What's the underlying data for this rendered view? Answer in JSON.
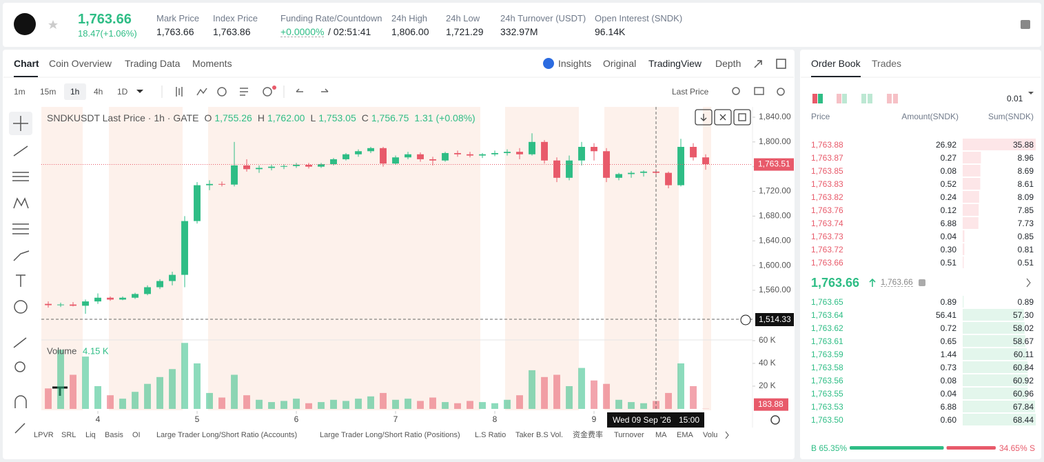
{
  "header": {
    "price": "1,763.66",
    "change": "18.47(+1.06%)",
    "stats": [
      {
        "label": "Mark Price",
        "value": "1,763.66"
      },
      {
        "label": "Index Price",
        "value": "1,763.86"
      },
      {
        "label": "Funding Rate/Countdown",
        "value": "+0.0000%",
        "extra": "/ 02:51:41"
      },
      {
        "label": "24h High",
        "value": "1,806.00"
      },
      {
        "label": "24h Low",
        "value": "1,721.29"
      },
      {
        "label": "24h Turnover (USDT)",
        "value": "332.97M"
      },
      {
        "label": "Open Interest (SNDK)",
        "value": "96.14K"
      }
    ]
  },
  "chart_tabs": [
    "Chart",
    "Coin Overview",
    "Trading Data",
    "Moments"
  ],
  "view_tabs": [
    "Insights",
    "Original",
    "TradingView",
    "Depth"
  ],
  "intervals": [
    "1m",
    "15m",
    "1h",
    "4h",
    "1D"
  ],
  "price_type": "Last Price",
  "legend": {
    "symbol": "SNDKUSDT Last Price · 1h · GATE",
    "items": [
      {
        "key": "O",
        "value": "1,755.26"
      },
      {
        "key": "H",
        "value": "1,762.00"
      },
      {
        "key": "L",
        "value": "1,753.05"
      },
      {
        "key": "C",
        "value": "1,756.75"
      }
    ],
    "change": "1.31 (+0.08%)"
  },
  "chart_data": {
    "type": "candlestick",
    "up_color": "#2ebd85",
    "down_color": "#e85a6a",
    "x": [
      -12,
      -9,
      -6,
      -3,
      0,
      3,
      6,
      9,
      12,
      15,
      18,
      21,
      24,
      27,
      30,
      33,
      36,
      39,
      42,
      45,
      48,
      51,
      54,
      57,
      60,
      63,
      66,
      69,
      72,
      75,
      78,
      81,
      84,
      87,
      90,
      93,
      96,
      99,
      102,
      105,
      108,
      111,
      114,
      117,
      120,
      123,
      126,
      129,
      132,
      135,
      138,
      141,
      144,
      147
    ],
    "open": [
      1538,
      1536,
      1537,
      1535,
      1542,
      1548,
      1545,
      1548,
      1554,
      1565,
      1575,
      1585,
      1672,
      1730,
      1732,
      1731,
      1762,
      1756,
      1758,
      1760,
      1761,
      1763,
      1760,
      1764,
      1772,
      1780,
      1785,
      1790,
      1765,
      1775,
      1780,
      1772,
      1770,
      1782,
      1780,
      1778,
      1780,
      1782,
      1784,
      1780,
      1800,
      1770,
      1742,
      1770,
      1792,
      1785,
      1742,
      1748,
      1750,
      1752,
      1750,
      1730,
      1792,
      1775
    ],
    "high": [
      1542,
      1540,
      1541,
      1545,
      1555,
      1550,
      1550,
      1556,
      1568,
      1578,
      1590,
      1680,
      1735,
      1738,
      1736,
      1800,
      1772,
      1762,
      1763,
      1764,
      1766,
      1766,
      1766,
      1774,
      1782,
      1788,
      1792,
      1792,
      1778,
      1784,
      1783,
      1776,
      1784,
      1786,
      1784,
      1782,
      1786,
      1788,
      1790,
      1814,
      1803,
      1775,
      1778,
      1800,
      1798,
      1790,
      1750,
      1753,
      1754,
      1756,
      1752,
      1805,
      1798,
      1780
    ],
    "low": [
      1532,
      1533,
      1534,
      1522,
      1538,
      1543,
      1544,
      1546,
      1552,
      1562,
      1568,
      1565,
      1668,
      1722,
      1728,
      1728,
      1752,
      1750,
      1754,
      1756,
      1758,
      1757,
      1758,
      1762,
      1770,
      1776,
      1782,
      1760,
      1763,
      1772,
      1768,
      1762,
      1768,
      1776,
      1775,
      1774,
      1777,
      1778,
      1772,
      1778,
      1765,
      1735,
      1738,
      1762,
      1770,
      1735,
      1738,
      1742,
      1744,
      1746,
      1725,
      1728,
      1770,
      1755
    ],
    "close": [
      1536,
      1537,
      1535,
      1542,
      1548,
      1545,
      1548,
      1554,
      1565,
      1575,
      1585,
      1672,
      1730,
      1732,
      1731,
      1762,
      1756,
      1758,
      1760,
      1761,
      1763,
      1760,
      1764,
      1772,
      1780,
      1785,
      1790,
      1765,
      1775,
      1780,
      1772,
      1770,
      1782,
      1780,
      1778,
      1780,
      1782,
      1784,
      1780,
      1800,
      1770,
      1742,
      1770,
      1792,
      1785,
      1742,
      1748,
      1750,
      1752,
      1750,
      1730,
      1792,
      1775,
      1764
    ],
    "xlim": [
      -13.67,
      158.33
    ],
    "xticks": [
      {
        "value": 0,
        "label": "4"
      },
      {
        "value": 24,
        "label": "5"
      },
      {
        "value": 48,
        "label": "6"
      },
      {
        "value": 72,
        "label": "7"
      },
      {
        "value": 96,
        "label": "8"
      },
      {
        "value": 120,
        "label": "9"
      }
    ],
    "ylim": [
      1480.8,
      1856.7
    ],
    "yticks": [
      {
        "value": 1560,
        "label": "1,560.00"
      },
      {
        "value": 1600,
        "label": "1,600.00"
      },
      {
        "value": 1640,
        "label": "1,640.00"
      },
      {
        "value": 1680,
        "label": "1,680.00"
      },
      {
        "value": 1720,
        "label": "1,720.00"
      },
      {
        "value": 1760,
        "label": "1,760.00"
      },
      {
        "value": 1800,
        "label": "1,800.00"
      },
      {
        "value": 1840,
        "label": "1,840.00"
      }
    ],
    "last_price": {
      "value": 1763.51,
      "label": "1,763.51"
    },
    "crosshair": {
      "price": "1,514.33",
      "date": "Wed 09 Sep '26",
      "time": "15:00"
    },
    "volume": {
      "label": "Volume",
      "current": "4.15 K",
      "values": [
        18000,
        52000,
        30000,
        46000,
        20000,
        12000,
        9000,
        15000,
        22000,
        28000,
        35000,
        58000,
        40000,
        14000,
        10000,
        30000,
        12000,
        8000,
        6000,
        7000,
        9000,
        5000,
        6000,
        8000,
        7000,
        9000,
        11000,
        14000,
        8000,
        9000,
        7000,
        10000,
        6000,
        5000,
        7000,
        6000,
        5000,
        8000,
        12000,
        34000,
        28000,
        30000,
        20000,
        36000,
        25000,
        22000,
        8000,
        6000,
        5000,
        7000,
        14000,
        40000,
        20000,
        183.88
      ],
      "ylim": [
        0,
        60000
      ],
      "yticks": [
        {
          "value": 20000,
          "label": "20 K"
        },
        {
          "value": 40000,
          "label": "40 K"
        },
        {
          "value": 60000,
          "label": "60 K"
        }
      ]
    }
  },
  "indicators": [
    "LPVR",
    "SRL",
    "Liq",
    "Basis",
    "OI",
    "Large Trader Long/Short Ratio (Accounts)",
    "Large Trader Long/Short Ratio (Positions)",
    "L.S Ratio",
    "Taker B.S Vol.",
    "资金费率",
    "Turnover",
    "MA",
    "EMA",
    "Volu"
  ],
  "order_book": {
    "tabs": [
      "Order Book",
      "Trades"
    ],
    "precision": "0.01",
    "columns": [
      "Price",
      "Amount(SNDK)",
      "Sum(SNDK)"
    ],
    "asks": [
      {
        "price": "1,763.88",
        "amount": "26.92",
        "sum": {
          "value": 35.88,
          "label": "35.88"
        }
      },
      {
        "price": "1,763.87",
        "amount": "0.27",
        "sum": {
          "value": 8.96,
          "label": "8.96"
        }
      },
      {
        "price": "1,763.85",
        "amount": "0.08",
        "sum": {
          "value": 8.69,
          "label": "8.69"
        }
      },
      {
        "price": "1,763.83",
        "amount": "0.52",
        "sum": {
          "value": 8.61,
          "label": "8.61"
        }
      },
      {
        "price": "1,763.82",
        "amount": "0.24",
        "sum": {
          "value": 8.09,
          "label": "8.09"
        }
      },
      {
        "price": "1,763.76",
        "amount": "0.12",
        "sum": {
          "value": 7.85,
          "label": "7.85"
        }
      },
      {
        "price": "1,763.74",
        "amount": "6.88",
        "sum": {
          "value": 7.73,
          "label": "7.73"
        }
      },
      {
        "price": "1,763.73",
        "amount": "0.04",
        "sum": {
          "value": 0.85,
          "label": "0.85"
        }
      },
      {
        "price": "1,763.72",
        "amount": "0.30",
        "sum": {
          "value": 0.81,
          "label": "0.81"
        }
      },
      {
        "price": "1,763.66",
        "amount": "0.51",
        "sum": {
          "value": 0.51,
          "label": "0.51"
        }
      }
    ],
    "last": "1,763.66",
    "mark": "1,763.66",
    "bids": [
      {
        "price": "1,763.65",
        "amount": "0.89",
        "sum": {
          "value": 0.89,
          "label": "0.89"
        }
      },
      {
        "price": "1,763.64",
        "amount": "56.41",
        "sum": {
          "value": 57.3,
          "label": "57.30"
        }
      },
      {
        "price": "1,763.62",
        "amount": "0.72",
        "sum": {
          "value": 58.02,
          "label": "58.02"
        }
      },
      {
        "price": "1,763.61",
        "amount": "0.65",
        "sum": {
          "value": 58.67,
          "label": "58.67"
        }
      },
      {
        "price": "1,763.59",
        "amount": "1.44",
        "sum": {
          "value": 60.11,
          "label": "60.11"
        }
      },
      {
        "price": "1,763.58",
        "amount": "0.73",
        "sum": {
          "value": 60.84,
          "label": "60.84"
        }
      },
      {
        "price": "1,763.56",
        "amount": "0.08",
        "sum": {
          "value": 60.92,
          "label": "60.92"
        }
      },
      {
        "price": "1,763.55",
        "amount": "0.04",
        "sum": {
          "value": 60.96,
          "label": "60.96"
        }
      },
      {
        "price": "1,763.53",
        "amount": "6.88",
        "sum": {
          "value": 67.84,
          "label": "67.84"
        }
      },
      {
        "price": "1,763.50",
        "amount": "0.60",
        "sum": {
          "value": 68.44,
          "label": "68.44"
        }
      }
    ],
    "buy": {
      "value": 65.35,
      "label": "B 65.35%"
    },
    "sell": {
      "value": 34.65,
      "label": "34.65% S"
    }
  }
}
